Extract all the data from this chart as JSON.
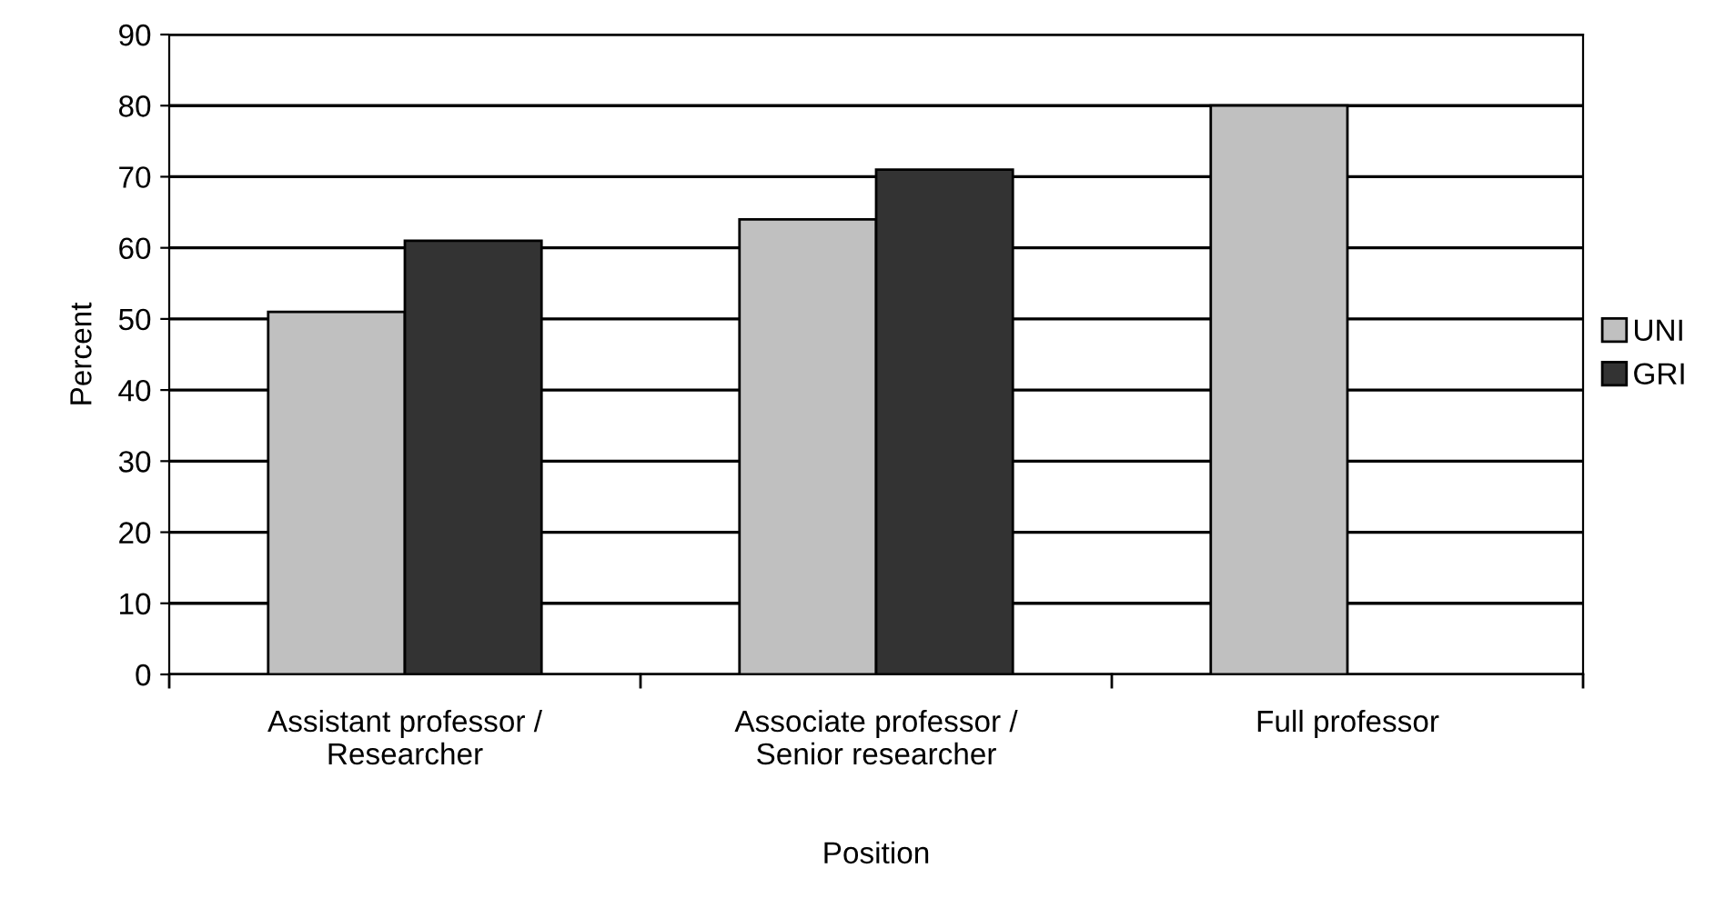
{
  "chart_data": {
    "type": "bar",
    "xlabel": "Position",
    "ylabel": "Percent",
    "categories": [
      "Assistant professor /\nResearcher",
      "Associate professor /\nSenior researcher",
      "Full professor"
    ],
    "series": [
      {
        "name": "UNI",
        "color": "#c0c0c0",
        "values": [
          51,
          64,
          80
        ]
      },
      {
        "name": "GRI",
        "color": "#333333",
        "values": [
          61,
          71,
          null
        ]
      }
    ],
    "ylim": [
      0,
      90
    ],
    "yticks": [
      0,
      10,
      20,
      30,
      40,
      50,
      60,
      70,
      80,
      90
    ],
    "grid": "y",
    "legend": "right"
  }
}
